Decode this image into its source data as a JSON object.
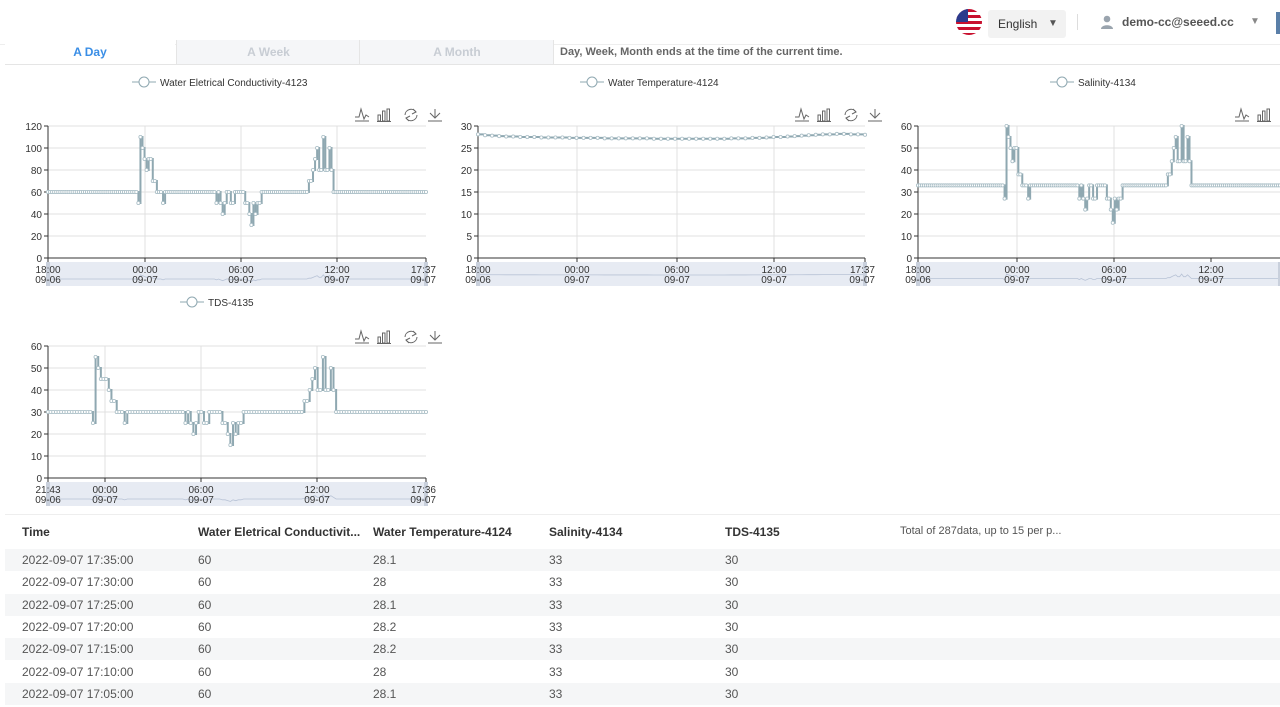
{
  "header": {
    "language": "English",
    "user_email": "demo-cc@seeed.cc",
    "flag_icon": "us-flag-icon",
    "user_icon": "user-icon"
  },
  "tabs": [
    {
      "label": "A Day",
      "active": true
    },
    {
      "label": "A Week",
      "active": false
    },
    {
      "label": "A Month",
      "active": false
    }
  ],
  "tab_note": "Day, Week, Month ends at the time of the current time.",
  "colors": {
    "accent": "#3a8ee6",
    "series": "#a7bcc4",
    "line": "#8fa8b1"
  },
  "chart_data": [
    {
      "type": "line",
      "title": "Water Eletrical Conductivity-4123",
      "legend": "Water Eletrical Conductivity-4123",
      "ylim": [
        0,
        120
      ],
      "yticks": [
        0,
        20,
        40,
        60,
        80,
        100,
        120
      ],
      "xtick_times": [
        "18:00",
        "00:00",
        "06:00",
        "12:00",
        "17:37"
      ],
      "xtick_dates": [
        "09-06",
        "09-07",
        "09-07",
        "09-07",
        "09-07"
      ],
      "series": [
        {
          "name": "Water Eletrical Conductivity-4123",
          "values": [
            60,
            60,
            60,
            60,
            60,
            60,
            60,
            60,
            60,
            60,
            60,
            60,
            60,
            60,
            60,
            60,
            60,
            60,
            60,
            60,
            60,
            60,
            60,
            60,
            60,
            60,
            60,
            60,
            60,
            60,
            60,
            60,
            60,
            60,
            60,
            60,
            60,
            60,
            60,
            60,
            60,
            60,
            60,
            60,
            50,
            110,
            100,
            90,
            80,
            90,
            90,
            70,
            70,
            60,
            60,
            60,
            50,
            60,
            60,
            60,
            60,
            60,
            60,
            60,
            60,
            60,
            60,
            60,
            60,
            60,
            60,
            60,
            60,
            60,
            60,
            60,
            60,
            60,
            60,
            60,
            60,
            60,
            50,
            60,
            50,
            40,
            50,
            60,
            60,
            50,
            50,
            60,
            60,
            60,
            60,
            60,
            50,
            50,
            40,
            30,
            50,
            40,
            50,
            50,
            60,
            60,
            60,
            60,
            60,
            60,
            60,
            60,
            60,
            60,
            60,
            60,
            60,
            60,
            60,
            60,
            60,
            60,
            60,
            60,
            60,
            60,
            60,
            70,
            70,
            80,
            90,
            100,
            80,
            80,
            110,
            80,
            80,
            100,
            80,
            60,
            60,
            60,
            60,
            60,
            60,
            60,
            60,
            60,
            60,
            60,
            60,
            60,
            60,
            60,
            60,
            60,
            60,
            60,
            60,
            60,
            60,
            60,
            60,
            60,
            60,
            60,
            60,
            60,
            60,
            60,
            60,
            60,
            60,
            60,
            60,
            60,
            60,
            60,
            60,
            60,
            60,
            60,
            60,
            60,
            60
          ]
        }
      ],
      "grid": true,
      "legend_position": "top"
    },
    {
      "type": "line",
      "title": "Water Temperature-4124",
      "legend": "Water Temperature-4124",
      "ylim": [
        0,
        30
      ],
      "yticks": [
        0,
        5,
        10,
        15,
        20,
        25,
        30
      ],
      "xtick_times": [
        "18:00",
        "00:00",
        "06:00",
        "12:00",
        "17:37"
      ],
      "xtick_dates": [
        "09-06",
        "09-07",
        "09-07",
        "09-07",
        "09-07"
      ],
      "series": [
        {
          "name": "Water Temperature-4124",
          "values": [
            28.1,
            27.9,
            27.8,
            27.7,
            27.6,
            27.6,
            27.5,
            27.5,
            27.5,
            27.4,
            27.4,
            27.4,
            27.4,
            27.3,
            27.3,
            27.3,
            27.3,
            27.3,
            27.2,
            27.2,
            27.2,
            27.2,
            27.2,
            27.2,
            27.2,
            27.1,
            27.1,
            27.1,
            27.1,
            27.1,
            27.1,
            27.1,
            27.1,
            27.1,
            27.1,
            27.1,
            27.2,
            27.2,
            27.2,
            27.3,
            27.3,
            27.4,
            27.5,
            27.5,
            27.6,
            27.7,
            27.8,
            27.9,
            28.0,
            28.1,
            28.1,
            28.2,
            28.2,
            28.1,
            28.1,
            28.0
          ]
        }
      ],
      "grid": true,
      "legend_position": "top"
    },
    {
      "type": "line",
      "title": "Salinity-4134",
      "legend": "Salinity-4134",
      "ylim": [
        0,
        60
      ],
      "yticks": [
        0,
        10,
        20,
        30,
        40,
        50,
        60
      ],
      "xtick_times": [
        "18:00",
        "00:00",
        "06:00",
        "12:00"
      ],
      "xtick_dates": [
        "09-06",
        "09-07",
        "09-07",
        "09-07"
      ],
      "series": [
        {
          "name": "Salinity-4134",
          "values": [
            33,
            33,
            33,
            33,
            33,
            33,
            33,
            33,
            33,
            33,
            33,
            33,
            33,
            33,
            33,
            33,
            33,
            33,
            33,
            33,
            33,
            33,
            33,
            33,
            33,
            33,
            33,
            33,
            33,
            33,
            33,
            33,
            33,
            33,
            33,
            33,
            33,
            33,
            33,
            33,
            33,
            33,
            33,
            33,
            27,
            60,
            55,
            50,
            44,
            50,
            50,
            38,
            38,
            33,
            33,
            33,
            27,
            33,
            33,
            33,
            33,
            33,
            33,
            33,
            33,
            33,
            33,
            33,
            33,
            33,
            33,
            33,
            33,
            33,
            33,
            33,
            33,
            33,
            33,
            33,
            33,
            33,
            27,
            33,
            27,
            22,
            27,
            33,
            33,
            27,
            27,
            33,
            33,
            33,
            33,
            33,
            27,
            27,
            22,
            16,
            27,
            22,
            27,
            27,
            33,
            33,
            33,
            33,
            33,
            33,
            33,
            33,
            33,
            33,
            33,
            33,
            33,
            33,
            33,
            33,
            33,
            33,
            33,
            33,
            33,
            33,
            33,
            38,
            38,
            44,
            50,
            55,
            44,
            44,
            60,
            44,
            44,
            55,
            44,
            33,
            33,
            33,
            33,
            33,
            33,
            33,
            33,
            33,
            33,
            33,
            33,
            33,
            33,
            33,
            33,
            33,
            33,
            33,
            33,
            33,
            33,
            33,
            33,
            33,
            33,
            33,
            33,
            33,
            33,
            33,
            33,
            33,
            33,
            33,
            33,
            33,
            33,
            33,
            33,
            33,
            33,
            33,
            33,
            33,
            33
          ]
        }
      ],
      "grid": true,
      "legend_position": "top"
    },
    {
      "type": "line",
      "title": "TDS-4135",
      "legend": "TDS-4135",
      "ylim": [
        0,
        60
      ],
      "yticks": [
        0,
        10,
        20,
        30,
        40,
        50,
        60
      ],
      "xtick_times": [
        "21:43",
        "00:00",
        "06:00",
        "12:00",
        "17:36"
      ],
      "xtick_dates": [
        "09-06",
        "09-07",
        "09-07",
        "09-07",
        "09-07"
      ],
      "series": [
        {
          "name": "TDS-4135",
          "values": [
            30,
            30,
            30,
            30,
            30,
            30,
            30,
            30,
            30,
            30,
            30,
            30,
            30,
            30,
            30,
            30,
            30,
            25,
            55,
            50,
            45,
            45,
            45,
            40,
            35,
            35,
            30,
            30,
            30,
            25,
            30,
            30,
            30,
            30,
            30,
            30,
            30,
            30,
            30,
            30,
            30,
            30,
            30,
            30,
            30,
            30,
            30,
            30,
            30,
            30,
            30,
            30,
            25,
            30,
            25,
            20,
            25,
            30,
            30,
            25,
            25,
            30,
            30,
            30,
            30,
            30,
            25,
            25,
            20,
            15,
            25,
            20,
            25,
            25,
            30,
            30,
            30,
            30,
            30,
            30,
            30,
            30,
            30,
            30,
            30,
            30,
            30,
            30,
            30,
            30,
            30,
            30,
            30,
            30,
            30,
            30,
            30,
            35,
            35,
            40,
            45,
            50,
            40,
            40,
            55,
            40,
            40,
            50,
            40,
            30,
            30,
            30,
            30,
            30,
            30,
            30,
            30,
            30,
            30,
            30,
            30,
            30,
            30,
            30,
            30,
            30,
            30,
            30,
            30,
            30,
            30,
            30,
            30,
            30,
            30,
            30,
            30,
            30,
            30,
            30,
            30,
            30,
            30,
            30
          ]
        }
      ],
      "grid": true,
      "legend_position": "top"
    }
  ],
  "table": {
    "headers": [
      "Time",
      "Water Eletrical Conductivit...",
      "Water Temperature-4124",
      "Salinity-4134",
      "TDS-4135"
    ],
    "total_text": "Total of 287data, up to 15 per p...",
    "rows": [
      [
        "2022-09-07 17:35:00",
        "60",
        "28.1",
        "33",
        "30"
      ],
      [
        "2022-09-07 17:30:00",
        "60",
        "28",
        "33",
        "30"
      ],
      [
        "2022-09-07 17:25:00",
        "60",
        "28.1",
        "33",
        "30"
      ],
      [
        "2022-09-07 17:20:00",
        "60",
        "28.2",
        "33",
        "30"
      ],
      [
        "2022-09-07 17:15:00",
        "60",
        "28.2",
        "33",
        "30"
      ],
      [
        "2022-09-07 17:10:00",
        "60",
        "28",
        "33",
        "30"
      ],
      [
        "2022-09-07 17:05:00",
        "60",
        "28.1",
        "33",
        "30"
      ]
    ]
  }
}
